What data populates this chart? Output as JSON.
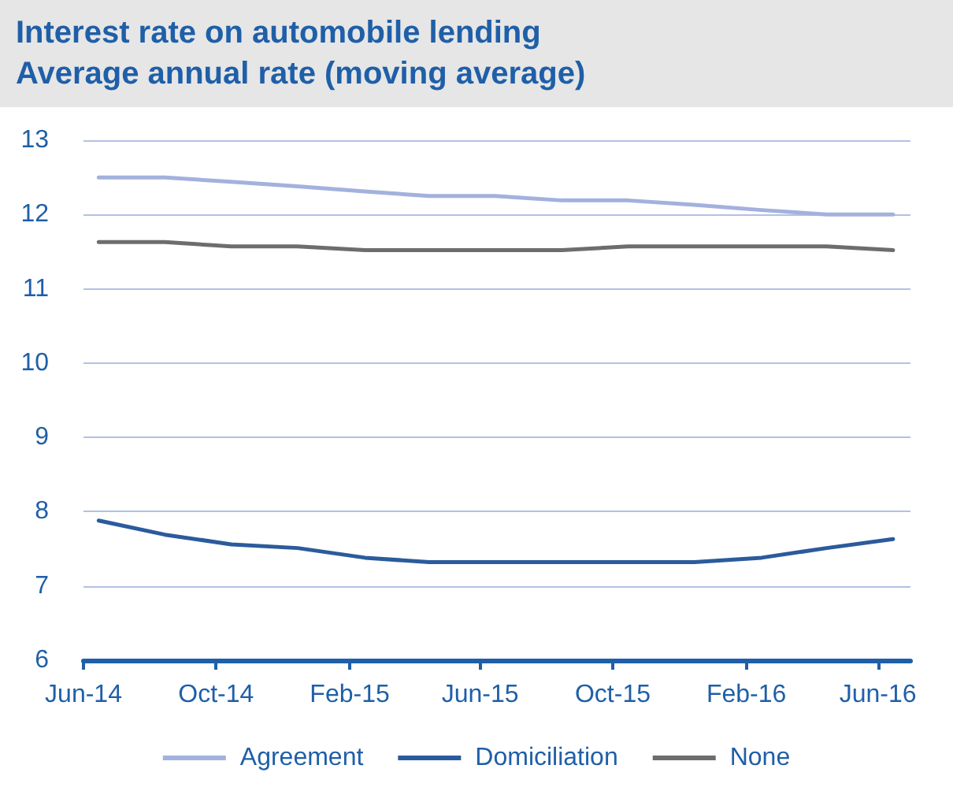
{
  "chart_data": {
    "type": "line",
    "title": "Interest rate on automobile lending\nAverage annual rate (moving average)",
    "x": [
      "2014-06-15",
      "2014-08-15",
      "2014-10-15",
      "2014-12-15",
      "2015-02-15",
      "2015-04-15",
      "2015-06-15",
      "2015-08-15",
      "2015-10-15",
      "2015-12-15",
      "2016-02-15",
      "2016-04-15",
      "2016-06-15"
    ],
    "series": [
      {
        "name": "Agreement",
        "color": "#a3b1dd",
        "values": [
          12.5,
          12.5,
          12.44,
          12.38,
          12.31,
          12.25,
          12.25,
          12.19,
          12.19,
          12.13,
          12.06,
          12.0,
          12.0
        ]
      },
      {
        "name": "Domiciliation",
        "color": "#2b5b9c",
        "values": [
          7.88,
          7.69,
          7.56,
          7.51,
          7.38,
          7.32,
          7.32,
          7.32,
          7.32,
          7.32,
          7.38,
          7.51,
          7.63
        ]
      },
      {
        "name": "None",
        "color": "#6d6d6d",
        "values": [
          11.63,
          11.63,
          11.57,
          11.57,
          11.52,
          11.52,
          11.52,
          11.52,
          11.57,
          11.57,
          11.57,
          11.57,
          11.52
        ]
      }
    ],
    "xlim": [
      "2014-06-01",
      "2016-07-01"
    ],
    "xticks": [
      {
        "value": "2014-06-01",
        "label": "Jun-14"
      },
      {
        "value": "2014-10-01",
        "label": "Oct-14"
      },
      {
        "value": "2015-02-01",
        "label": "Feb-15"
      },
      {
        "value": "2015-06-01",
        "label": "Jun-15"
      },
      {
        "value": "2015-10-01",
        "label": "Oct-15"
      },
      {
        "value": "2016-02-01",
        "label": "Feb-16"
      },
      {
        "value": "2016-06-01",
        "label": "Jun-16"
      }
    ],
    "ylim": [
      6,
      13
    ],
    "yticks": [
      6,
      7,
      8,
      9,
      10,
      11,
      12,
      13
    ],
    "grid": "y",
    "legend": "bottom",
    "marker": "none",
    "line_style": "solid"
  }
}
